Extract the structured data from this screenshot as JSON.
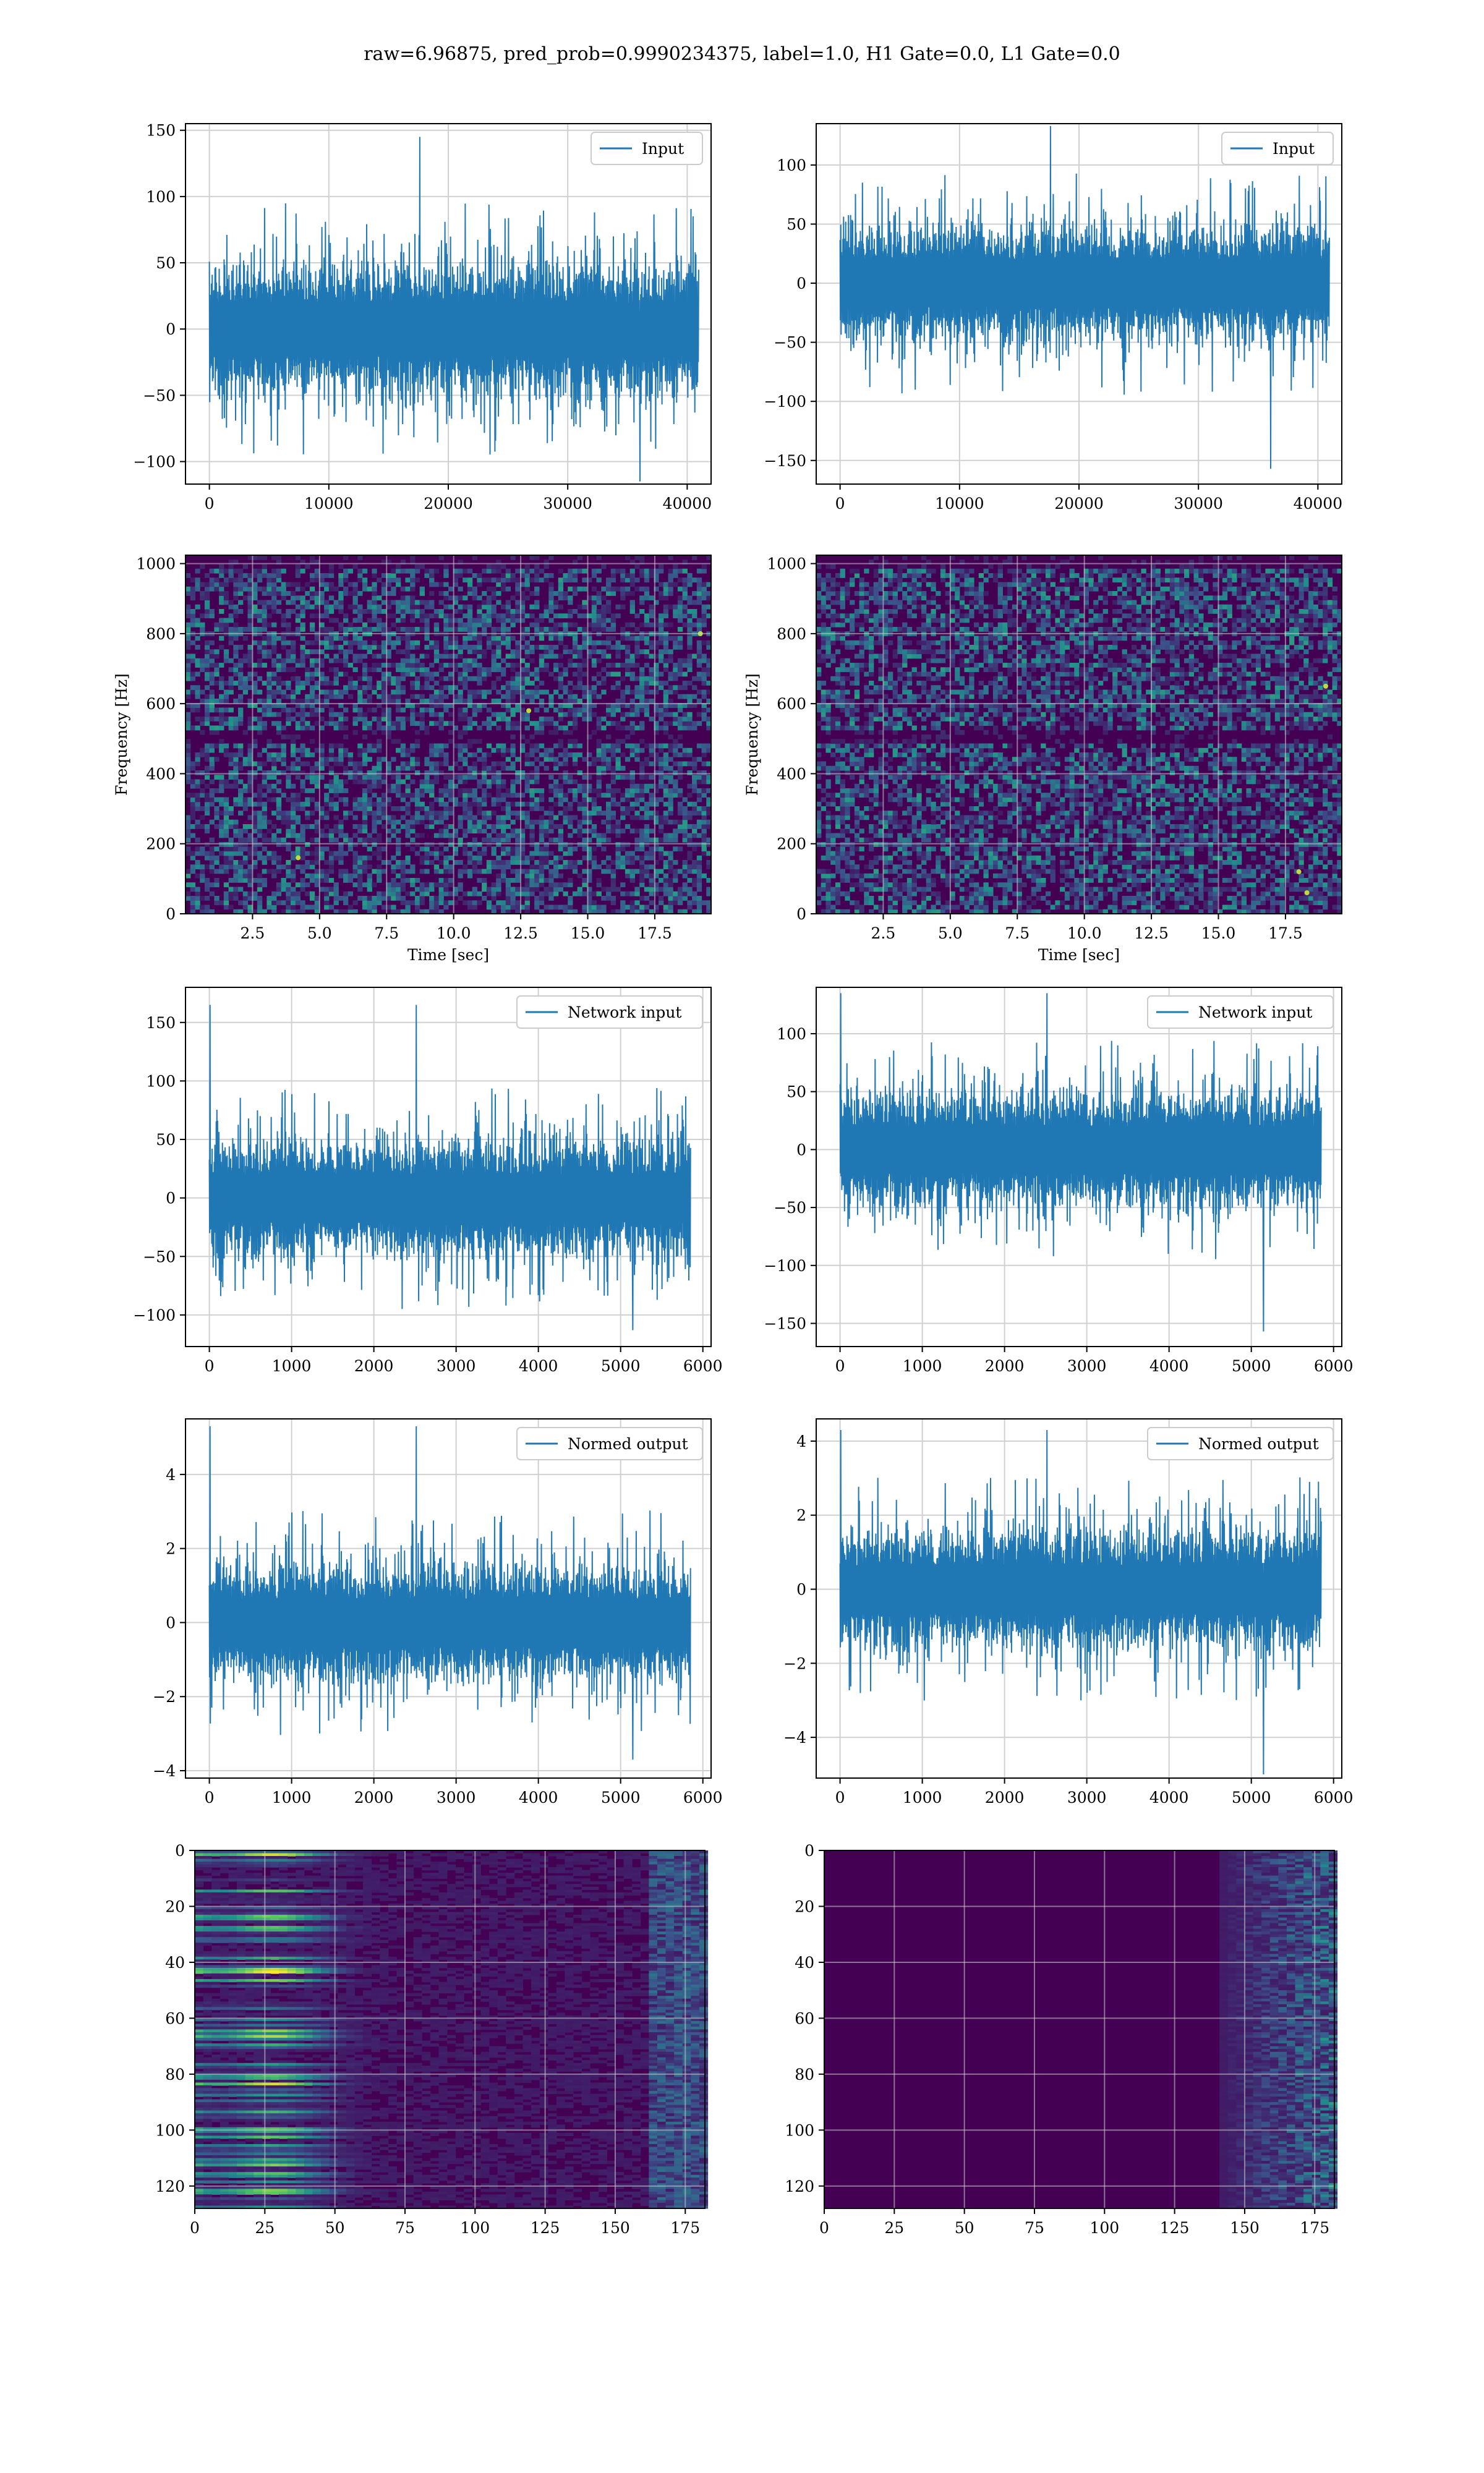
{
  "figure": {
    "suptitle": "raw=6.96875, pred_prob=0.9990234375, label=1.0, H1 Gate=0.0, L1 Gate=0.0"
  },
  "colors": {
    "line": "#1f77b4",
    "grid": "#d0d0d0",
    "viridis": [
      "#440154",
      "#3b528b",
      "#21918c",
      "#5ec962",
      "#fde725"
    ]
  },
  "chart_data": [
    {
      "type": "line",
      "id": "raw_h1",
      "legend": "Input",
      "legend_loc": "upper-right",
      "xlim": [
        -2000,
        42000
      ],
      "ylim": [
        -117,
        155
      ],
      "xticks": [
        0,
        10000,
        20000,
        30000,
        40000
      ],
      "yticks": [
        -100,
        -50,
        0,
        50,
        100,
        150
      ],
      "xlabel": "",
      "ylabel": "",
      "grid": true,
      "signal": {
        "x_start": 0,
        "x_end": 40960,
        "amplitude": 50,
        "spike_max": 145,
        "spike_min": -115
      }
    },
    {
      "type": "line",
      "id": "raw_l1",
      "legend": "Input",
      "legend_loc": "upper-right",
      "xlim": [
        -2000,
        42000
      ],
      "ylim": [
        -170,
        135
      ],
      "xticks": [
        0,
        10000,
        20000,
        30000,
        40000
      ],
      "yticks": [
        -150,
        -100,
        -50,
        0,
        50,
        100
      ],
      "xlabel": "",
      "ylabel": "",
      "grid": true,
      "signal": {
        "x_start": 0,
        "x_end": 40960,
        "amplitude": 50,
        "spike_max": 133,
        "spike_min": -157
      }
    },
    {
      "type": "heatmap",
      "id": "spec_h1",
      "xlim": [
        0,
        19.6
      ],
      "ylim": [
        0,
        1024
      ],
      "xticks": [
        2.5,
        5.0,
        7.5,
        10.0,
        12.5,
        15.0,
        17.5
      ],
      "xtick_labels": [
        "2.5",
        "5.0",
        "7.5",
        "10.0",
        "12.5",
        "15.0",
        "17.5"
      ],
      "yticks": [
        0,
        200,
        400,
        600,
        800,
        1000
      ],
      "xlabel": "Time [sec]",
      "ylabel": "Frequency [Hz]",
      "grid": true,
      "dark_bands": [
        505,
        1000
      ],
      "bright_spots": [
        [
          12.8,
          580
        ],
        [
          4.2,
          160
        ],
        [
          19.2,
          800
        ]
      ]
    },
    {
      "type": "heatmap",
      "id": "spec_l1",
      "xlim": [
        0,
        19.6
      ],
      "ylim": [
        0,
        1024
      ],
      "xticks": [
        2.5,
        5.0,
        7.5,
        10.0,
        12.5,
        15.0,
        17.5
      ],
      "xtick_labels": [
        "2.5",
        "5.0",
        "7.5",
        "10.0",
        "12.5",
        "15.0",
        "17.5"
      ],
      "yticks": [
        0,
        200,
        400,
        600,
        800,
        1000
      ],
      "xlabel": "Time [sec]",
      "ylabel": "Frequency [Hz]",
      "grid": true,
      "dark_bands": [
        505,
        1000
      ],
      "bright_spots": [
        [
          19.0,
          650
        ],
        [
          18.0,
          120
        ],
        [
          18.3,
          60
        ]
      ]
    },
    {
      "type": "line",
      "id": "net_h1",
      "legend": "Network input",
      "legend_loc": "upper-right",
      "xlim": [
        -290,
        6100
      ],
      "ylim": [
        -127,
        180
      ],
      "xticks": [
        0,
        1000,
        2000,
        3000,
        4000,
        5000,
        6000
      ],
      "yticks": [
        -100,
        -50,
        0,
        50,
        100,
        150
      ],
      "xlabel": "",
      "ylabel": "",
      "grid": true,
      "signal": {
        "x_start": 0,
        "x_end": 5850,
        "amplitude": 50,
        "spike_max": 165,
        "spike_min": -113
      }
    },
    {
      "type": "line",
      "id": "net_l1",
      "legend": "Network input",
      "legend_loc": "upper-right",
      "xlim": [
        -290,
        6100
      ],
      "ylim": [
        -170,
        140
      ],
      "xticks": [
        0,
        1000,
        2000,
        3000,
        4000,
        5000,
        6000
      ],
      "yticks": [
        -150,
        -100,
        -50,
        0,
        50,
        100
      ],
      "xlabel": "",
      "ylabel": "",
      "grid": true,
      "signal": {
        "x_start": 0,
        "x_end": 5850,
        "amplitude": 50,
        "spike_max": 135,
        "spike_min": -157
      }
    },
    {
      "type": "line",
      "id": "norm_h1",
      "legend": "Normed output",
      "legend_loc": "upper-right",
      "xlim": [
        -290,
        6100
      ],
      "ylim": [
        -4.2,
        5.5
      ],
      "xticks": [
        0,
        1000,
        2000,
        3000,
        4000,
        5000,
        6000
      ],
      "yticks": [
        -4,
        -2,
        0,
        2,
        4
      ],
      "xlabel": "",
      "ylabel": "",
      "grid": true,
      "signal": {
        "x_start": 0,
        "x_end": 5850,
        "amplitude": 1.6,
        "spike_max": 5.3,
        "spike_min": -3.7
      }
    },
    {
      "type": "line",
      "id": "norm_l1",
      "legend": "Normed output",
      "legend_loc": "upper-right",
      "xlim": [
        -290,
        6100
      ],
      "ylim": [
        -5.1,
        4.6
      ],
      "xticks": [
        0,
        1000,
        2000,
        3000,
        4000,
        5000,
        6000
      ],
      "yticks": [
        -4,
        -2,
        0,
        2,
        4
      ],
      "xlabel": "",
      "ylabel": "",
      "grid": true,
      "signal": {
        "x_start": 0,
        "x_end": 5850,
        "amplitude": 1.6,
        "spike_max": 4.3,
        "spike_min": -5.0
      }
    },
    {
      "type": "heatmap",
      "id": "feat_h1",
      "xlim": [
        0,
        182
      ],
      "ylim": [
        128,
        0
      ],
      "xticks": [
        0,
        25,
        50,
        75,
        100,
        125,
        150,
        175
      ],
      "yticks": [
        0,
        20,
        40,
        60,
        80,
        100,
        120
      ],
      "xlabel": "",
      "ylabel": "",
      "grid": true,
      "pattern": "left-bright"
    },
    {
      "type": "heatmap",
      "id": "feat_l1",
      "xlim": [
        0,
        182
      ],
      "ylim": [
        128,
        0
      ],
      "xticks": [
        0,
        25,
        50,
        75,
        100,
        125,
        150,
        175
      ],
      "yticks": [
        0,
        20,
        40,
        60,
        80,
        100,
        120
      ],
      "xlabel": "",
      "ylabel": "",
      "grid": true,
      "pattern": "right-bright"
    }
  ]
}
